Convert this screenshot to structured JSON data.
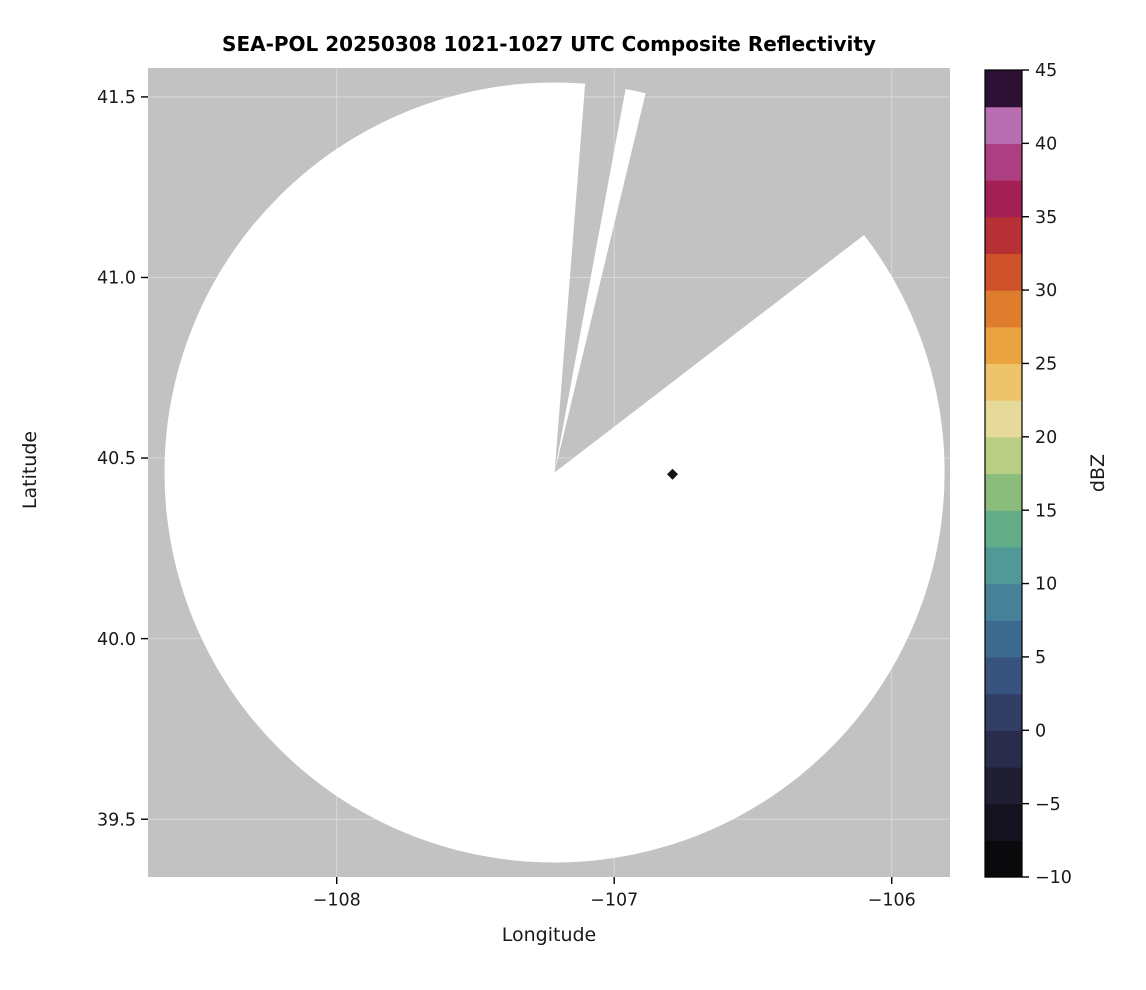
{
  "page": {
    "background": "#ffffff"
  },
  "chart_data": {
    "type": "radar_ppi_map",
    "title": "SEA-POL 20250308 1021-1027 UTC Composite Reflectivity",
    "xlabel": "Longitude",
    "ylabel": "Latitude",
    "xlim": [
      -108.68,
      -105.79
    ],
    "ylim": [
      39.34,
      41.58
    ],
    "xticks": [
      -108,
      -107,
      -106
    ],
    "xtick_labels": [
      "−108",
      "−107",
      "−106"
    ],
    "yticks": [
      39.5,
      40.0,
      40.5,
      41.0,
      41.5
    ],
    "ytick_labels": [
      "39.5",
      "40.0",
      "40.5",
      "41.0",
      "41.5"
    ],
    "background_color": "#c2c2c2",
    "grid": {
      "show": true,
      "color": "#ffffff",
      "opacity": 0.35
    },
    "coverage": {
      "description": "white circular radar coverage area with missing (gray) azimuth sectors",
      "center_lon": -107.215,
      "center_lat": 40.46,
      "radius_deg_lat": 1.08,
      "fill": "#ffffff",
      "missing_sectors_deg": [
        [
          4.5,
          10.5
        ],
        [
          13.5,
          52.5
        ]
      ]
    },
    "marker": {
      "lon": -106.79,
      "lat": 40.455,
      "shape": "diamond",
      "color": "#141414",
      "size": 5.5
    },
    "colorbar": {
      "label": "dBZ",
      "min": -10,
      "max": 45,
      "ticks": [
        -10,
        -5,
        0,
        5,
        10,
        15,
        20,
        25,
        30,
        35,
        40,
        45
      ],
      "tick_labels": [
        "−10",
        "−5",
        "0",
        "5",
        "10",
        "15",
        "20",
        "25",
        "30",
        "35",
        "40",
        "45"
      ],
      "segment_colors_bottom_to_top": [
        "#0a0a0c",
        "#151320",
        "#201e33",
        "#2a2c4c",
        "#323e66",
        "#38537e",
        "#3e6a90",
        "#45829a",
        "#509997",
        "#63ac88",
        "#8abd7c",
        "#bacd84",
        "#e6da9b",
        "#eec46b",
        "#eba33f",
        "#df7d2e",
        "#cd5129",
        "#b63035",
        "#a41f54",
        "#ac3e82",
        "#b96eb2",
        "#2d1135"
      ]
    }
  }
}
